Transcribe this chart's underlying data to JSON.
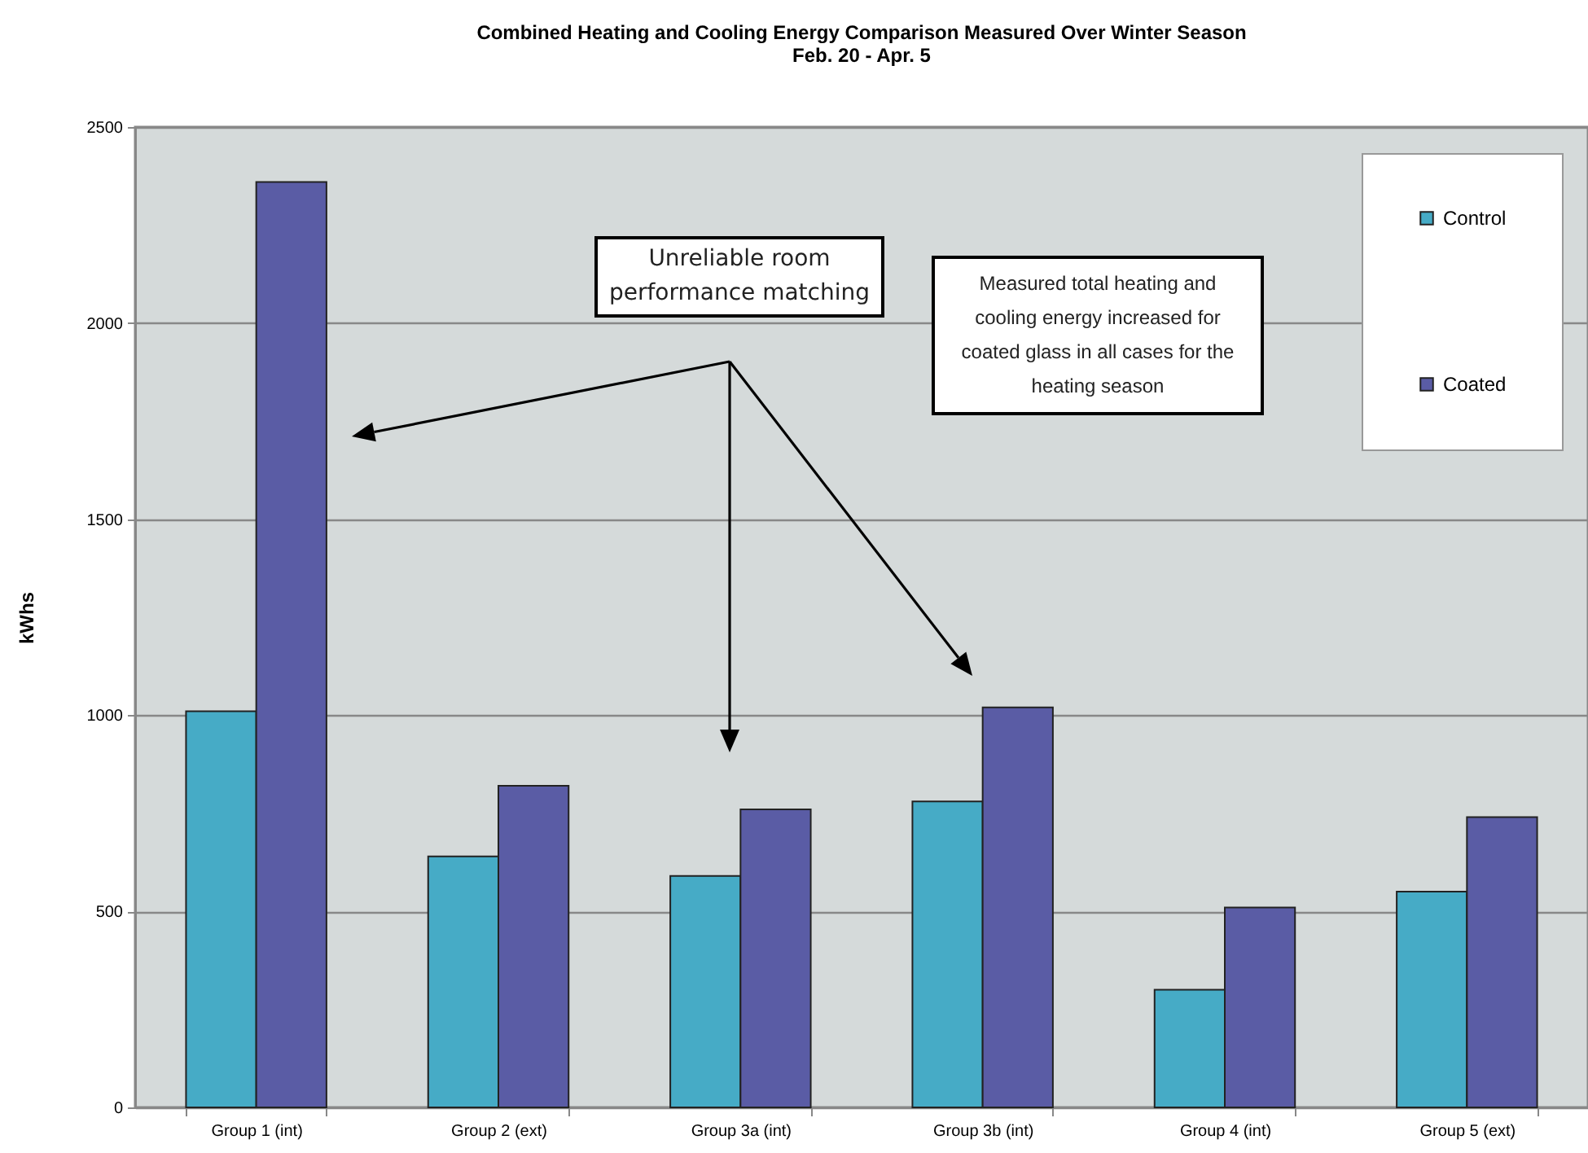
{
  "chart_data": {
    "type": "bar",
    "title": "Combined Heating and Cooling Energy Comparison Measured Over Winter Season",
    "subtitle": "Feb. 20 - Apr. 5",
    "ylabel": "kWhs",
    "categories": [
      "Group 1 (int)",
      "Group 2 (ext)",
      "Group 3a (int)",
      "Group 3b (int)",
      "Group 4 (int)",
      "Group 5 (ext)"
    ],
    "series": [
      {
        "name": "Control",
        "color": "#46abc6",
        "values": [
          1010,
          640,
          590,
          780,
          300,
          550
        ]
      },
      {
        "name": "Coated",
        "color": "#5a5ca5",
        "values": [
          2360,
          820,
          760,
          1020,
          510,
          740
        ]
      }
    ],
    "ylim": [
      0,
      2500
    ],
    "yticks": [
      0,
      500,
      {
        "value": 1000,
        "label": "1000"
      },
      {
        "value": 1500,
        "label": "1500"
      },
      {
        "value": 2000,
        "label": "2000"
      },
      {
        "value": 2500,
        "label": "2500"
      }
    ],
    "grid": "y",
    "legend": "top right",
    "annotations": [
      "Unreliable room performance matching",
      "Measured total heating and cooling energy increased for coated glass in all cases for the heating season"
    ]
  }
}
